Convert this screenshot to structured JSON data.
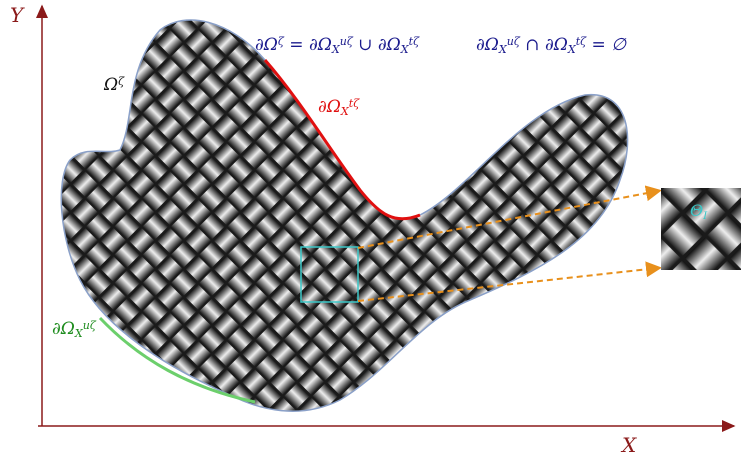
{
  "labels": {
    "y_axis": "Y",
    "x_axis": "X",
    "domain": {
      "base": "Ω",
      "sup": "ζ"
    },
    "top_boundary": {
      "base": "∂Ω",
      "sub": "X",
      "sup": "tζ"
    },
    "bottom_boundary": {
      "base": "∂Ω",
      "sub": "X",
      "sup": "uζ"
    },
    "cell": {
      "base": "Θ",
      "sub": "I"
    }
  },
  "equations": [
    [
      {
        "base": "∂Ω",
        "sup": "ζ"
      },
      {
        "base": " = "
      },
      {
        "base": "∂Ω",
        "sub": "X",
        "sup": "uζ"
      },
      {
        "base": " ∪ "
      },
      {
        "base": "∂Ω",
        "sub": "X",
        "sup": "tζ"
      }
    ],
    [
      {
        "base": "∂Ω",
        "sub": "X",
        "sup": "uζ"
      },
      {
        "base": " ∩ "
      },
      {
        "base": "∂Ω",
        "sub": "X",
        "sup": "tζ"
      },
      {
        "base": " = ∅"
      }
    ]
  ]
}
